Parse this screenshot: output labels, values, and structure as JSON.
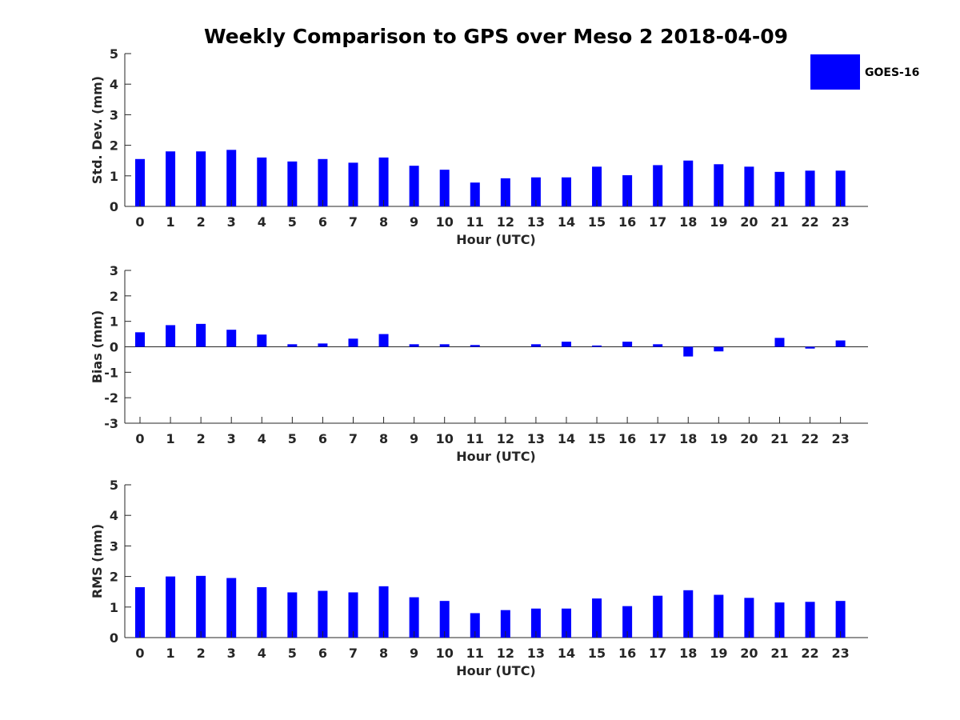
{
  "title": "Weekly Comparison to GPS over Meso 2 2018-04-09",
  "legend": {
    "label": "GOES-16",
    "color": "#0000ff"
  },
  "chart_data": [
    {
      "type": "bar",
      "categories": [
        "0",
        "1",
        "2",
        "3",
        "4",
        "5",
        "6",
        "7",
        "8",
        "9",
        "10",
        "11",
        "12",
        "13",
        "14",
        "15",
        "16",
        "17",
        "18",
        "19",
        "20",
        "21",
        "22",
        "23"
      ],
      "series": [
        {
          "name": "GOES-16",
          "values": [
            1.55,
            1.8,
            1.8,
            1.85,
            1.6,
            1.47,
            1.55,
            1.43,
            1.6,
            1.33,
            1.2,
            0.78,
            0.92,
            0.95,
            0.95,
            1.3,
            1.02,
            1.35,
            1.5,
            1.38,
            1.3,
            1.13,
            1.17,
            1.17
          ],
          "color": "#0000ff"
        }
      ],
      "xlabel": "Hour (UTC)",
      "ylabel": "Std. Dev. (mm)",
      "ylim": [
        0,
        5
      ],
      "yticks": [
        "0",
        "1",
        "2",
        "3",
        "4",
        "5"
      ],
      "grid": false
    },
    {
      "type": "bar",
      "categories": [
        "0",
        "1",
        "2",
        "3",
        "4",
        "5",
        "6",
        "7",
        "8",
        "9",
        "10",
        "11",
        "12",
        "13",
        "14",
        "15",
        "16",
        "17",
        "18",
        "19",
        "20",
        "21",
        "22",
        "23"
      ],
      "series": [
        {
          "name": "GOES-16",
          "values": [
            0.57,
            0.85,
            0.9,
            0.67,
            0.48,
            0.1,
            0.13,
            0.32,
            0.5,
            0.1,
            0.1,
            0.07,
            0.0,
            0.1,
            0.2,
            0.05,
            0.2,
            0.1,
            -0.38,
            -0.18,
            0.0,
            0.35,
            -0.07,
            0.25
          ],
          "color": "#0000ff"
        }
      ],
      "xlabel": "Hour (UTC)",
      "ylabel": "Bias (mm)",
      "ylim": [
        -3,
        3
      ],
      "yticks": [
        "-3",
        "-2",
        "-1",
        "0",
        "1",
        "2",
        "3"
      ],
      "grid": false
    },
    {
      "type": "bar",
      "categories": [
        "0",
        "1",
        "2",
        "3",
        "4",
        "5",
        "6",
        "7",
        "8",
        "9",
        "10",
        "11",
        "12",
        "13",
        "14",
        "15",
        "16",
        "17",
        "18",
        "19",
        "20",
        "21",
        "22",
        "23"
      ],
      "series": [
        {
          "name": "GOES-16",
          "values": [
            1.65,
            2.0,
            2.02,
            1.95,
            1.65,
            1.48,
            1.53,
            1.48,
            1.68,
            1.32,
            1.2,
            0.8,
            0.9,
            0.95,
            0.95,
            1.28,
            1.03,
            1.37,
            1.55,
            1.4,
            1.3,
            1.15,
            1.17,
            1.2
          ],
          "color": "#0000ff"
        }
      ],
      "xlabel": "Hour (UTC)",
      "ylabel": "RMS (mm)",
      "ylim": [
        0,
        5
      ],
      "yticks": [
        "0",
        "1",
        "2",
        "3",
        "4",
        "5"
      ],
      "grid": false
    }
  ]
}
